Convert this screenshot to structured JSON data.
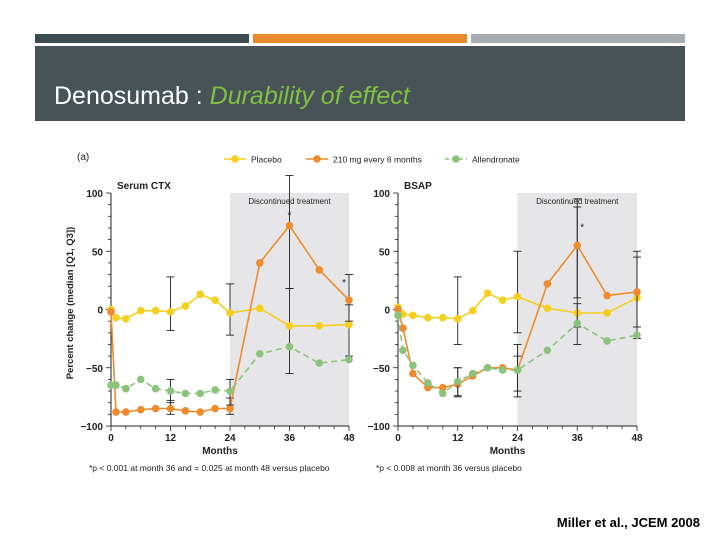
{
  "slide": {
    "title_main": "Denosumab : ",
    "title_emphasis": "Durability of effect",
    "citation": "Miller et al., JCEM 2008",
    "colors": {
      "bar_dark": "#3d4a50",
      "bar_orange": "#e8892b",
      "bar_grey": "#a7adb0",
      "title_band": "#475357",
      "title_accent": "#7fc242"
    }
  },
  "figure": {
    "panel_letter": "(a)",
    "legend": [
      "Placebo",
      "210 mg every 6 months",
      "Allendronate"
    ],
    "ylabel": "Percent change (median [Q1, Q3])",
    "shaded_label": "Discontinued treatment",
    "colors": {
      "Placebo": "#f5cf1f",
      "Denosumab": "#ee8b2e",
      "Alendronate": "#8cc37c",
      "shade": "#e6e6e8"
    }
  },
  "chart_data": [
    {
      "type": "line",
      "title": "Serum CTX",
      "xlabel": "Months",
      "ylabel": "Percent change (median [Q1, Q3])",
      "xlim": [
        0,
        48
      ],
      "ylim": [
        -100,
        100
      ],
      "xticks": [
        0,
        12,
        24,
        36,
        48
      ],
      "yticks": [
        100,
        50,
        0,
        -50,
        -100
      ],
      "shaded_region": {
        "from": 24,
        "to": 48,
        "label": "Discontinued treatment"
      },
      "annotations": [
        {
          "x": 36,
          "y": 78,
          "text": "*"
        },
        {
          "x": 47,
          "y": 20,
          "text": "*"
        }
      ],
      "footnote": "*p < 0.001 at month 36 and = 0.025 at month 48 versus placebo",
      "series": [
        {
          "name": "Placebo",
          "style": "solid",
          "x": [
            0,
            1,
            3,
            6,
            9,
            12,
            15,
            18,
            21,
            24,
            30,
            36,
            42,
            48
          ],
          "y": [
            0,
            -7,
            -8,
            -1,
            -1,
            -2,
            3,
            13,
            8,
            -3,
            1,
            -14,
            -14,
            -13
          ],
          "errors": [
            {
              "x": 12,
              "low": -18,
              "high": 28
            },
            {
              "x": 24,
              "low": -22,
              "high": 22
            },
            {
              "x": 36,
              "low": -55,
              "high": 18
            },
            {
              "x": 48,
              "low": -40,
              "high": 4
            }
          ]
        },
        {
          "name": "210 mg every 6 months",
          "style": "solid",
          "x": [
            0,
            1,
            3,
            6,
            9,
            12,
            15,
            18,
            21,
            24,
            30,
            36,
            42,
            48
          ],
          "y": [
            -2,
            -88,
            -88,
            -86,
            -85,
            -85,
            -87,
            -88,
            -85,
            -85,
            40,
            72,
            34,
            8
          ],
          "errors": [
            {
              "x": 12,
              "low": -90,
              "high": -78
            },
            {
              "x": 24,
              "low": -90,
              "high": -76
            },
            {
              "x": 36,
              "low": 18,
              "high": 115
            },
            {
              "x": 48,
              "low": -10,
              "high": 30
            }
          ]
        },
        {
          "name": "Allendronate",
          "style": "dashed",
          "x": [
            0,
            1,
            3,
            6,
            9,
            12,
            15,
            18,
            21,
            24,
            30,
            36,
            42,
            48
          ],
          "y": [
            -65,
            -65,
            -68,
            -60,
            -68,
            -70,
            -72,
            -72,
            -69,
            -70,
            -38,
            -32,
            -46,
            -43
          ],
          "errors": [
            {
              "x": 12,
              "low": -80,
              "high": -60
            },
            {
              "x": 24,
              "low": -82,
              "high": -60
            }
          ]
        }
      ]
    },
    {
      "type": "line",
      "title": "BSAP",
      "xlabel": "Months",
      "ylabel": "",
      "xlim": [
        0,
        48
      ],
      "ylim": [
        -100,
        100
      ],
      "xticks": [
        0,
        12,
        24,
        36,
        48
      ],
      "yticks": [
        100,
        50,
        0,
        -50,
        -100
      ],
      "shaded_region": {
        "from": 24,
        "to": 48,
        "label": "Discontinued treatment"
      },
      "annotations": [
        {
          "x": 37,
          "y": 68,
          "text": "*"
        }
      ],
      "footnote": "*p < 0.008 at month 36 versus placebo",
      "series": [
        {
          "name": "Placebo",
          "style": "solid",
          "x": [
            0,
            1,
            3,
            6,
            9,
            12,
            15,
            18,
            21,
            24,
            30,
            36,
            42,
            48
          ],
          "y": [
            2,
            -4,
            -5,
            -7,
            -7,
            -8,
            -1,
            14,
            8,
            11,
            1,
            -3,
            -3,
            10
          ],
          "errors": [
            {
              "x": 12,
              "low": -30,
              "high": 28
            },
            {
              "x": 24,
              "low": -20,
              "high": 50
            },
            {
              "x": 36,
              "low": -15,
              "high": 95
            },
            {
              "x": 48,
              "low": -25,
              "high": 50
            }
          ]
        },
        {
          "name": "210 mg every 6 months",
          "style": "solid",
          "x": [
            0,
            1,
            3,
            6,
            9,
            12,
            15,
            18,
            21,
            24,
            30,
            36,
            42,
            48
          ],
          "y": [
            0,
            -16,
            -55,
            -67,
            -67,
            -64,
            -57,
            -50,
            -50,
            -52,
            22,
            55,
            12,
            15
          ],
          "errors": [
            {
              "x": 12,
              "low": -75,
              "high": -50
            },
            {
              "x": 24,
              "low": -75,
              "high": -40
            },
            {
              "x": 36,
              "low": 10,
              "high": 88
            },
            {
              "x": 48,
              "low": -15,
              "high": 45
            }
          ]
        },
        {
          "name": "Allendronate",
          "style": "dashed",
          "x": [
            0,
            1,
            3,
            6,
            9,
            12,
            15,
            18,
            21,
            24,
            30,
            36,
            42,
            48
          ],
          "y": [
            -5,
            -35,
            -48,
            -63,
            -72,
            -62,
            -55,
            -50,
            -52,
            -52,
            -35,
            -12,
            -27,
            -22
          ],
          "errors": [
            {
              "x": 12,
              "low": -74,
              "high": -50
            },
            {
              "x": 24,
              "low": -70,
              "high": -30
            },
            {
              "x": 36,
              "low": -30,
              "high": 5
            }
          ]
        }
      ]
    }
  ]
}
